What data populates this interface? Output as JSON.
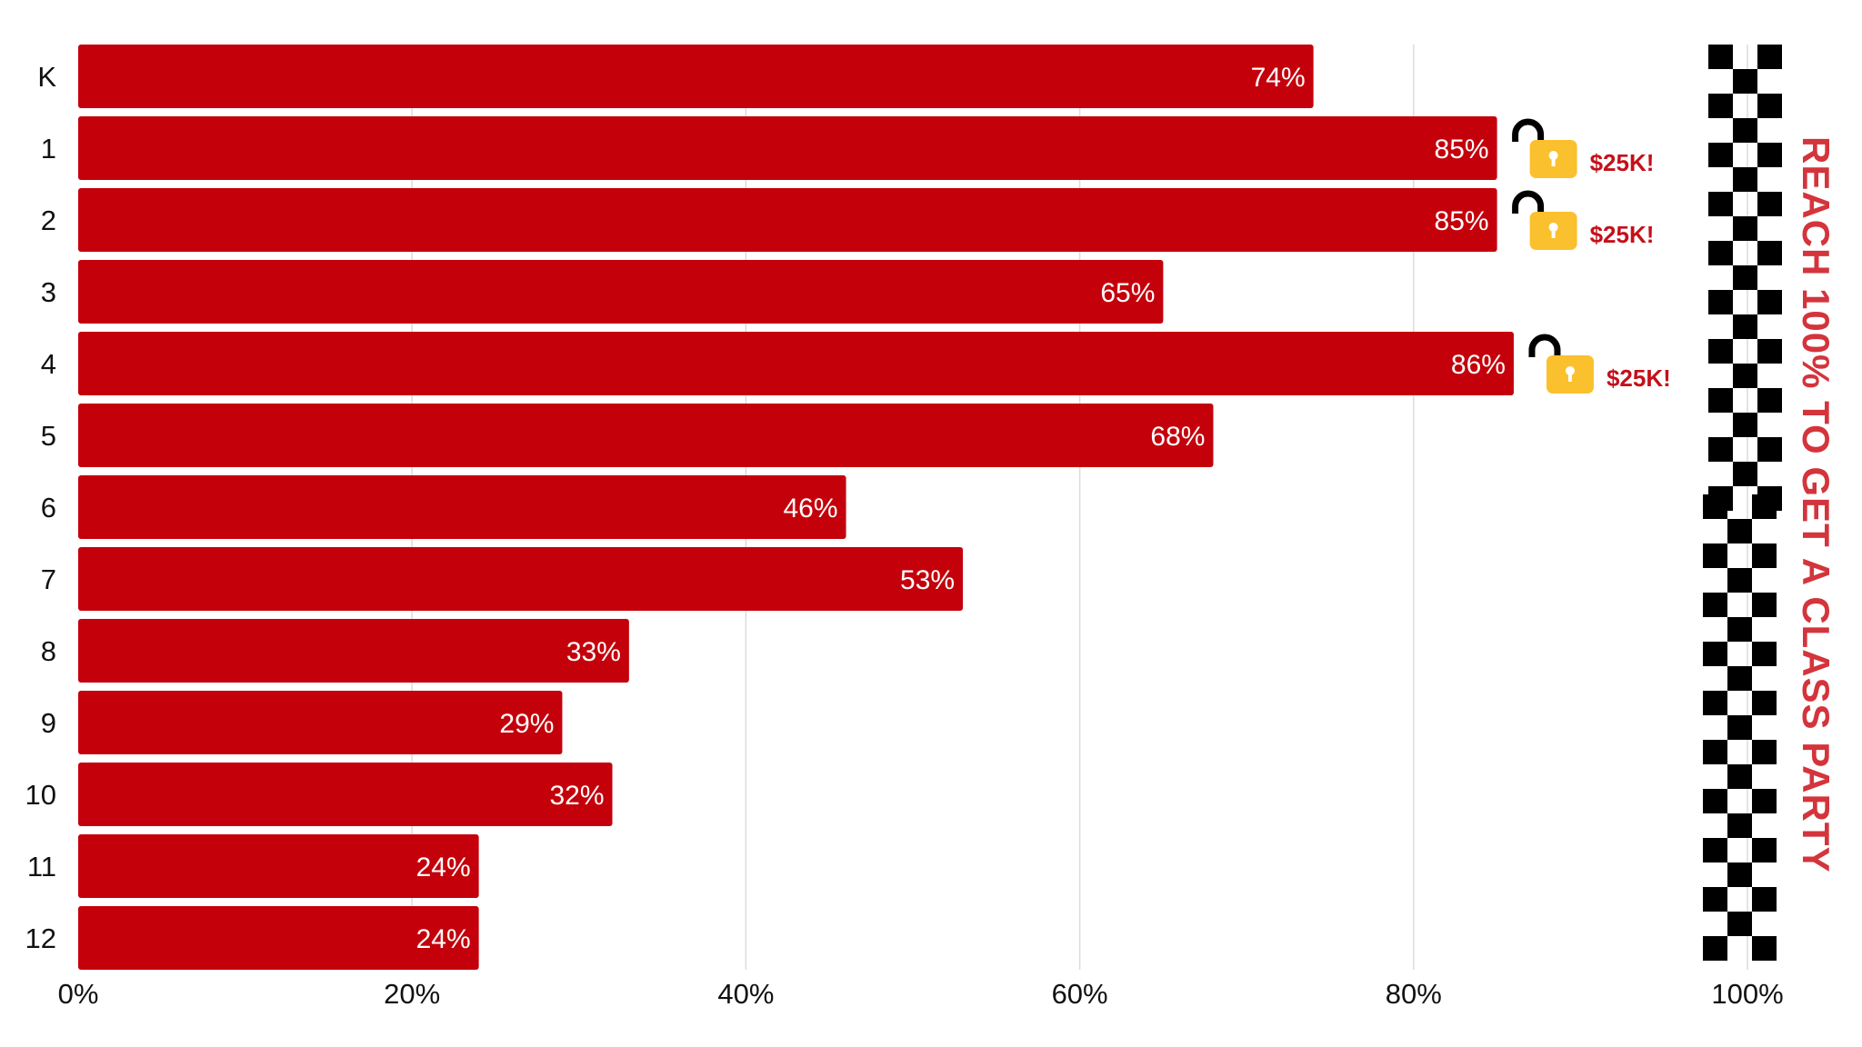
{
  "chart_data": {
    "type": "bar",
    "orientation": "horizontal",
    "categories": [
      "K",
      "1",
      "2",
      "3",
      "4",
      "5",
      "6",
      "7",
      "8",
      "9",
      "10",
      "11",
      "12"
    ],
    "values": [
      74,
      85,
      85,
      65,
      86,
      68,
      46,
      53,
      33,
      29,
      32,
      24,
      24
    ],
    "value_labels": [
      "74%",
      "85%",
      "85%",
      "65%",
      "86%",
      "68%",
      "46%",
      "53%",
      "33%",
      "29%",
      "32%",
      "24%",
      "24%"
    ],
    "xlim": [
      0,
      100
    ],
    "x_ticks": [
      "0%",
      "20%",
      "40%",
      "60%",
      "80%",
      "100%"
    ],
    "grid": true,
    "bar_color": "#c4000b",
    "annotations": [
      {
        "category": "1",
        "text": "$25K!",
        "icon": "unlocked-padlock-icon"
      },
      {
        "category": "2",
        "text": "$25K!",
        "icon": "unlocked-padlock-icon"
      },
      {
        "category": "4",
        "text": "$25K!",
        "icon": "unlocked-padlock-icon"
      }
    ],
    "finish_line": {
      "value": 100,
      "icon": "checkered-flag-icon"
    },
    "side_caption": "REACH 100% TO GET A CLASS PARTY"
  }
}
